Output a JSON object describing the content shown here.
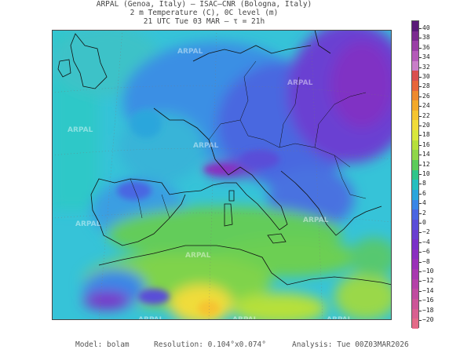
{
  "header": {
    "line1": "ARPAL (Genoa, Italy)  –  ISAC–CNR (Bologna, Italy)",
    "line2": "2 m Temperature (C), 0C level (m)",
    "line3": "21 UTC Tue 03 MAR  –  τ = 21h"
  },
  "watermark_text": "ARPAL",
  "colorbar": {
    "labels": [
      "40",
      "38",
      "36",
      "34",
      "32",
      "30",
      "28",
      "26",
      "24",
      "22",
      "20",
      "18",
      "16",
      "14",
      "12",
      "10",
      "8",
      "6",
      "4",
      "2",
      "0",
      "−2",
      "−4",
      "−6",
      "−8",
      "−10",
      "−12",
      "−14",
      "−16",
      "−18",
      "−20"
    ],
    "colors": [
      "#5a1a78",
      "#7b2a90",
      "#9a3fa6",
      "#b45ab8",
      "#c97ec8",
      "#d94f4f",
      "#e8663a",
      "#ee8a2e",
      "#f2a92a",
      "#f5c430",
      "#f0dc3a",
      "#d8e83c",
      "#b6e03a",
      "#8fd64a",
      "#5ccc5a",
      "#30c58a",
      "#25bfbf",
      "#2aa6dc",
      "#3a86e6",
      "#4a66e2",
      "#5a4ed8",
      "#6a3ed0",
      "#7a30c8",
      "#8a2ec0",
      "#9a30b8",
      "#a838b0",
      "#b442a8",
      "#c04ca0",
      "#cc5698",
      "#d86090",
      "#e46a88"
    ]
  },
  "footer": {
    "model": "Model: bolam",
    "resolution": "Resolution: 0.104°x0.074°",
    "analysis": "Analysis: Tue 00Z03MAR2026"
  }
}
